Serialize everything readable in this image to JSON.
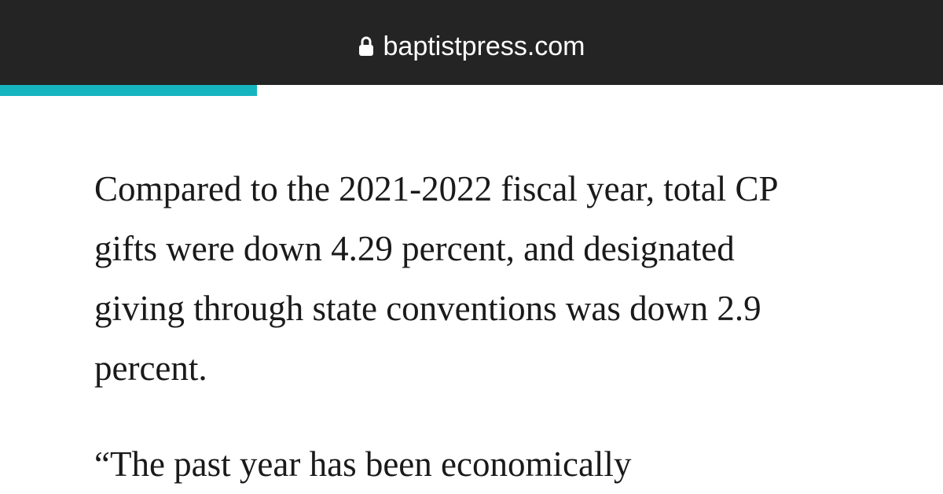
{
  "url": "baptistpress.com",
  "paragraph": {
    "lines": [
      "Compared to the 2021-2022 fiscal year, total CP",
      "gifts were down 4.29 percent, and designated",
      "giving through state conventions was down 2.9",
      "percent."
    ]
  },
  "next_paragraph_start": "“The past year has been economically"
}
